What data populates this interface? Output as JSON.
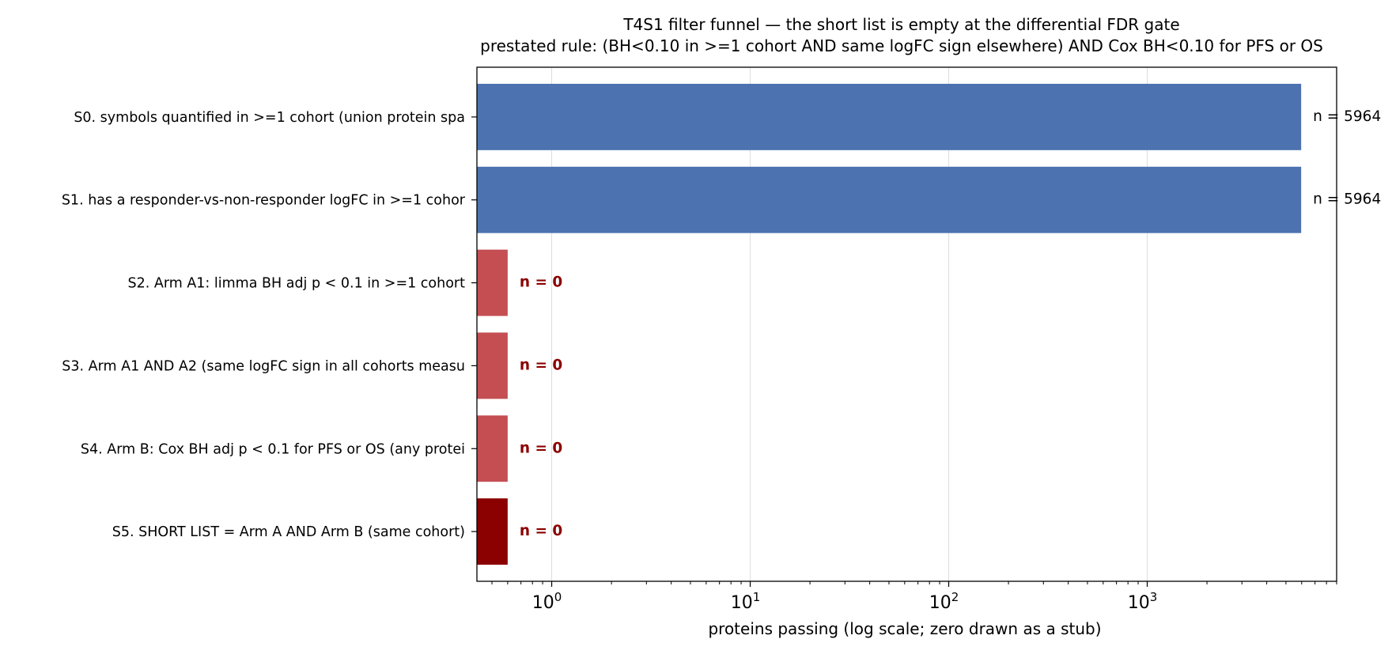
{
  "chart_data": {
    "type": "bar",
    "orientation": "horizontal",
    "title": "T4S1 filter funnel — the short list is empty at the differential FDR gate",
    "subtitle": "prestated rule: (BH<0.10 in >=1 cohort AND same logFC sign elsewhere) AND Cox BH<0.10 for PFS or OS",
    "xlabel": "proteins passing (log scale; zero drawn as a stub)",
    "ylabel": "",
    "x_scale": "log",
    "xlim": [
      0.42,
      9000
    ],
    "grid": "x-major",
    "zero_stub_value": 0.6,
    "categories": [
      "S0. symbols quantified in >=1 cohort (union protein spa",
      "S1. has a responder-vs-non-responder logFC in >=1 cohor",
      "S2. Arm A1: limma BH adj p < 0.1 in >=1 cohort",
      "S3. Arm A1 AND A2 (same logFC sign in all cohorts measu",
      "S4. Arm B: Cox BH adj p < 0.1 for PFS or OS (any protei",
      "S5. SHORT LIST = Arm A AND Arm B (same cohort)"
    ],
    "values": [
      5964,
      5964,
      0,
      0,
      0,
      0
    ],
    "value_labels": [
      "n = 5964",
      "n = 5964",
      "n = 0",
      "n = 0",
      "n = 0",
      "n = 0"
    ],
    "bar_colors": [
      "#4c72b0",
      "#4c72b0",
      "#c44e52",
      "#c44e52",
      "#c44e52",
      "#8b0000"
    ],
    "zero_label_color": "#8b0000",
    "major_ticks": [
      {
        "value": 1,
        "base": "10",
        "exp": "0"
      },
      {
        "value": 10,
        "base": "10",
        "exp": "1"
      },
      {
        "value": 100,
        "base": "10",
        "exp": "2"
      },
      {
        "value": 1000,
        "base": "10",
        "exp": "3"
      }
    ]
  }
}
